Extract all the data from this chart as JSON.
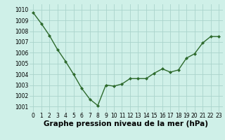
{
  "x": [
    0,
    1,
    2,
    3,
    4,
    5,
    6,
    7,
    8,
    9,
    10,
    11,
    12,
    13,
    14,
    15,
    16,
    17,
    18,
    19,
    20,
    21,
    22,
    23
  ],
  "y": [
    1009.7,
    1008.7,
    1007.6,
    1006.3,
    1005.2,
    1004.0,
    1002.7,
    1001.7,
    1001.1,
    1003.0,
    1002.9,
    1003.1,
    1003.6,
    1003.6,
    1003.6,
    1004.1,
    1004.5,
    1004.2,
    1004.4,
    1005.5,
    1005.9,
    1006.9,
    1007.5,
    1007.5
  ],
  "xlim": [
    -0.5,
    23.5
  ],
  "ylim": [
    1000.5,
    1010.5
  ],
  "yticks": [
    1001,
    1002,
    1003,
    1004,
    1005,
    1006,
    1007,
    1008,
    1009,
    1010
  ],
  "xticks": [
    0,
    1,
    2,
    3,
    4,
    5,
    6,
    7,
    8,
    9,
    10,
    11,
    12,
    13,
    14,
    15,
    16,
    17,
    18,
    19,
    20,
    21,
    22,
    23
  ],
  "line_color": "#2d6a2d",
  "marker_color": "#2d6a2d",
  "bg_color": "#cff0e8",
  "grid_color": "#aad4cc",
  "xlabel": "Graphe pression niveau de la mer (hPa)",
  "xlabel_fontsize": 7.5,
  "tick_fontsize": 5.5,
  "marker": "D",
  "marker_size": 2.0,
  "line_width": 1.0
}
